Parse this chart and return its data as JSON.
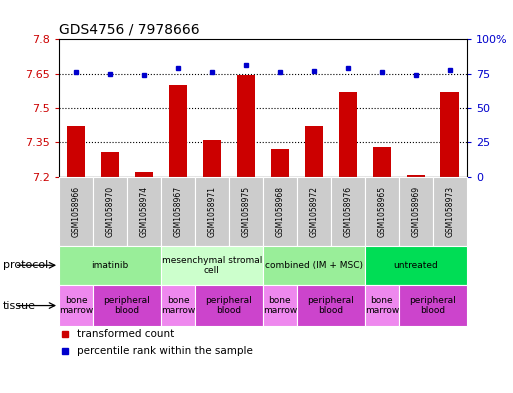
{
  "title": "GDS4756 / 7978666",
  "samples": [
    "GSM1058966",
    "GSM1058970",
    "GSM1058974",
    "GSM1058967",
    "GSM1058971",
    "GSM1058975",
    "GSM1058968",
    "GSM1058972",
    "GSM1058976",
    "GSM1058965",
    "GSM1058969",
    "GSM1058973"
  ],
  "transformed_counts": [
    7.42,
    7.31,
    7.22,
    7.6,
    7.36,
    7.645,
    7.32,
    7.42,
    7.57,
    7.33,
    7.21,
    7.57
  ],
  "percentile_ranks": [
    76,
    75,
    74,
    79,
    76,
    81,
    76,
    77,
    79,
    76,
    74,
    78
  ],
  "ylim_left": [
    7.2,
    7.8
  ],
  "ylim_right": [
    0,
    100
  ],
  "yticks_left": [
    7.2,
    7.35,
    7.5,
    7.65,
    7.8
  ],
  "yticks_right": [
    0,
    25,
    50,
    75,
    100
  ],
  "bar_color": "#cc0000",
  "dot_color": "#0000cc",
  "hline_values": [
    7.35,
    7.5,
    7.65
  ],
  "protocol_groups": [
    {
      "label": "imatinib",
      "start": 0,
      "end": 3,
      "color": "#99ee99"
    },
    {
      "label": "mesenchymal stromal\ncell",
      "start": 3,
      "end": 6,
      "color": "#ccffcc"
    },
    {
      "label": "combined (IM + MSC)",
      "start": 6,
      "end": 9,
      "color": "#99ee99"
    },
    {
      "label": "untreated",
      "start": 9,
      "end": 12,
      "color": "#00dd55"
    }
  ],
  "tissue_groups": [
    {
      "label": "bone\nmarrow",
      "start": 0,
      "end": 1,
      "color": "#ee88ee"
    },
    {
      "label": "peripheral\nblood",
      "start": 1,
      "end": 3,
      "color": "#cc44cc"
    },
    {
      "label": "bone\nmarrow",
      "start": 3,
      "end": 4,
      "color": "#ee88ee"
    },
    {
      "label": "peripheral\nblood",
      "start": 4,
      "end": 6,
      "color": "#cc44cc"
    },
    {
      "label": "bone\nmarrow",
      "start": 6,
      "end": 7,
      "color": "#ee88ee"
    },
    {
      "label": "peripheral\nblood",
      "start": 7,
      "end": 9,
      "color": "#cc44cc"
    },
    {
      "label": "bone\nmarrow",
      "start": 9,
      "end": 10,
      "color": "#ee88ee"
    },
    {
      "label": "peripheral\nblood",
      "start": 10,
      "end": 12,
      "color": "#cc44cc"
    }
  ],
  "sample_box_color": "#cccccc",
  "legend_items": [
    {
      "label": "transformed count",
      "color": "#cc0000"
    },
    {
      "label": "percentile rank within the sample",
      "color": "#0000cc"
    }
  ],
  "left_labels": [
    "protocol",
    "tissue"
  ],
  "figsize": [
    5.13,
    3.93
  ],
  "dpi": 100
}
